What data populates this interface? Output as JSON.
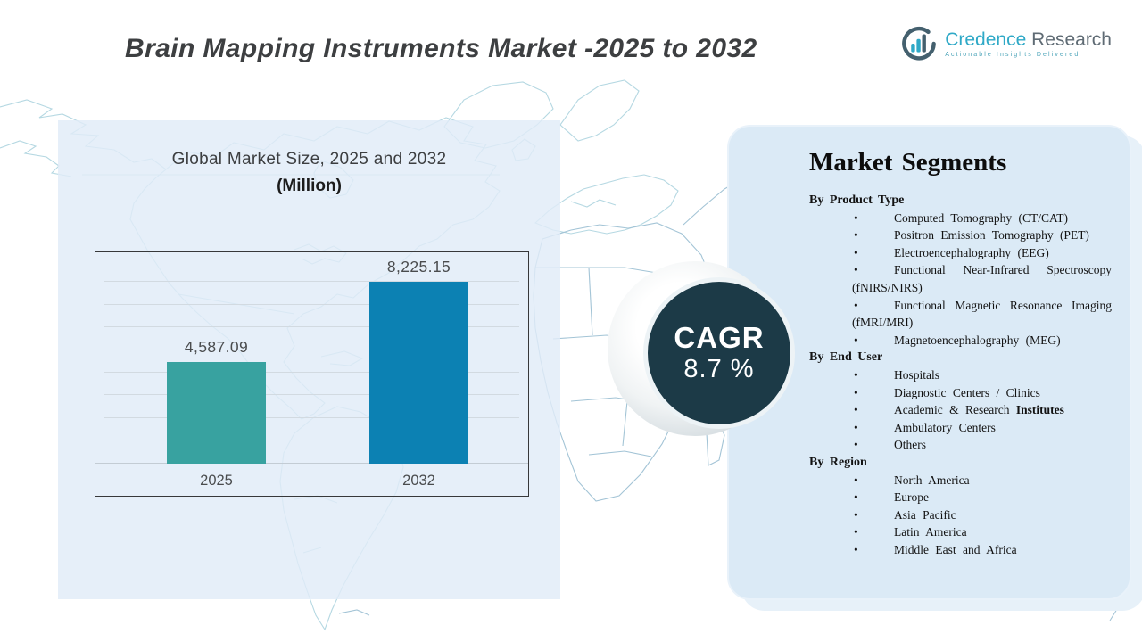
{
  "header": {
    "title": "Brain Mapping Instruments Market -2025 to 2032"
  },
  "logo": {
    "icon": "bar-chart-ring-icon",
    "name_primary": "Credence",
    "name_secondary": "Research",
    "tagline": "Actionable Insights Delivered",
    "primary_color": "#2fa9c7",
    "secondary_color": "#5f6b74"
  },
  "chart_data": {
    "type": "bar",
    "title": "Global Market Size, 2025 and 2032",
    "subtitle": "(Million)",
    "categories": [
      "2025",
      "2032"
    ],
    "values": [
      4587.09,
      8225.15
    ],
    "value_labels": [
      "4,587.09",
      "8,225.15"
    ],
    "bar_colors": [
      "#38a2a0",
      "#0c81b3"
    ],
    "ylim": [
      0,
      9200
    ],
    "gridlines": true,
    "legend_position": "none",
    "xlabel": "",
    "ylabel": ""
  },
  "cagr": {
    "label": "CAGR",
    "value": "8.7 %",
    "circle_color": "#1c3a47",
    "text_color": "#ffffff"
  },
  "segments": {
    "heading": "Market Segments",
    "groups": [
      {
        "title": "By Product Type",
        "items": [
          "Computed Tomography (CT/CAT)",
          "Positron Emission Tomography (PET)",
          "Electroencephalography (EEG)",
          "Functional Near-Infrared Spectroscopy (fNIRS/NIRS)",
          "Functional Magnetic Resonance Imaging (fMRI/MRI)",
          "Magnetoencephalography (MEG)"
        ]
      },
      {
        "title": "By End User",
        "items": [
          "Hospitals",
          "Diagnostic Centers / Clinics",
          {
            "label": "Academic & Research ",
            "bold": "Institutes"
          },
          "Ambulatory Centers",
          "Others"
        ]
      },
      {
        "title": "By Region",
        "items": [
          "North America",
          "Europe",
          "Asia Pacific",
          "Latin America",
          "Middle East and Africa"
        ]
      }
    ]
  },
  "colors": {
    "panel_blue": "#dbeaf6",
    "left_panel_blue": "#e0ecf8",
    "map_stroke": "#b5d8e2",
    "title_gray": "#3d3f41"
  }
}
